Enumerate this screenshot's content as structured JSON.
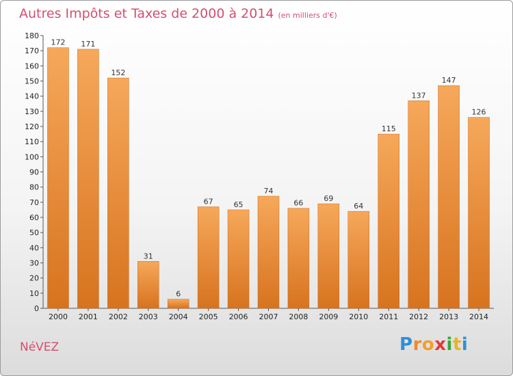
{
  "title": "Autres Impôts et Taxes de 2000 à 2014",
  "subtitle": "(en milliers d'€)",
  "city": "NéVEZ",
  "logo": {
    "letters": [
      "P",
      "r",
      "o",
      "x",
      "i",
      "t",
      "i"
    ],
    "colors": [
      "#2f8fd6",
      "#f08a2a",
      "#f0a02a",
      "#e23a3a",
      "#3aa63a",
      "#e6b32a",
      "#2f8fd6"
    ]
  },
  "colors": {
    "bar_top": "#f6a85a",
    "bar_bottom": "#d7731f",
    "title": "#d24f6f"
  },
  "chart_data": {
    "type": "bar",
    "categories": [
      "2000",
      "2001",
      "2002",
      "2003",
      "2004",
      "2005",
      "2006",
      "2007",
      "2008",
      "2009",
      "2010",
      "2011",
      "2012",
      "2013",
      "2014"
    ],
    "values": [
      172,
      171,
      152,
      31,
      6,
      67,
      65,
      74,
      66,
      69,
      64,
      115,
      137,
      147,
      126
    ],
    "ylim": [
      0,
      180
    ],
    "yticks": [
      0,
      10,
      20,
      30,
      40,
      50,
      60,
      70,
      80,
      90,
      100,
      110,
      120,
      130,
      140,
      150,
      160,
      170,
      180
    ],
    "grid": false
  }
}
